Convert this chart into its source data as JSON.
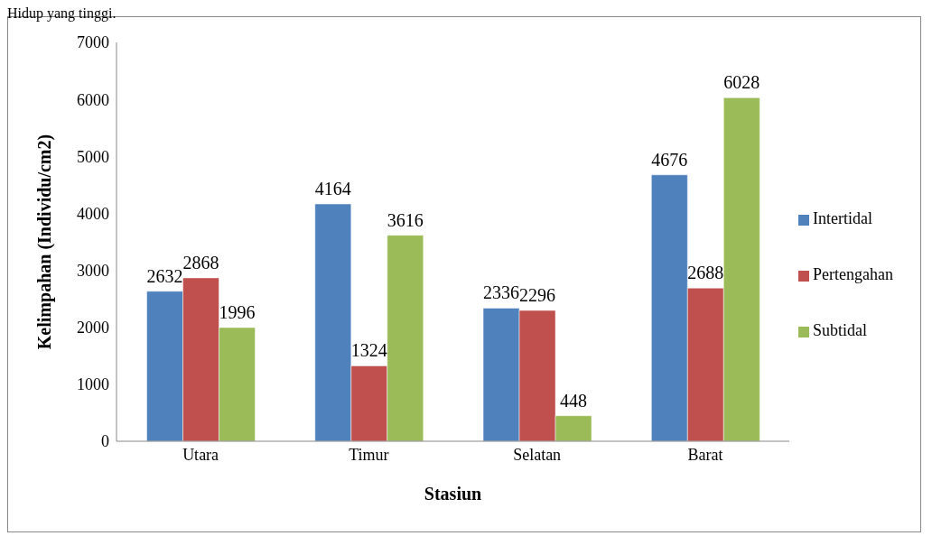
{
  "chart_data": {
    "type": "bar",
    "xlabel": "Stasiun",
    "ylabel": "Kelimpahan (Individu/cm2)",
    "annotations": [
      "Hidup yang tinggi."
    ],
    "categories": [
      "Utara",
      "Timur",
      "Selatan",
      "Barat"
    ],
    "series": [
      {
        "name": "Intertidal",
        "color": "#4f81bd",
        "values": [
          2632,
          4164,
          2336,
          4676
        ]
      },
      {
        "name": "Pertengahan",
        "color": "#c0504d",
        "values": [
          2868,
          1324,
          2296,
          2688
        ]
      },
      {
        "name": "Subtidal",
        "color": "#9bbb59",
        "values": [
          1996,
          3616,
          448,
          6028
        ]
      }
    ],
    "ylim": [
      0,
      7000
    ],
    "yticks": [
      0,
      1000,
      2000,
      3000,
      4000,
      5000,
      6000,
      7000
    ],
    "grid": false,
    "legend": "right",
    "data_labels": true
  }
}
